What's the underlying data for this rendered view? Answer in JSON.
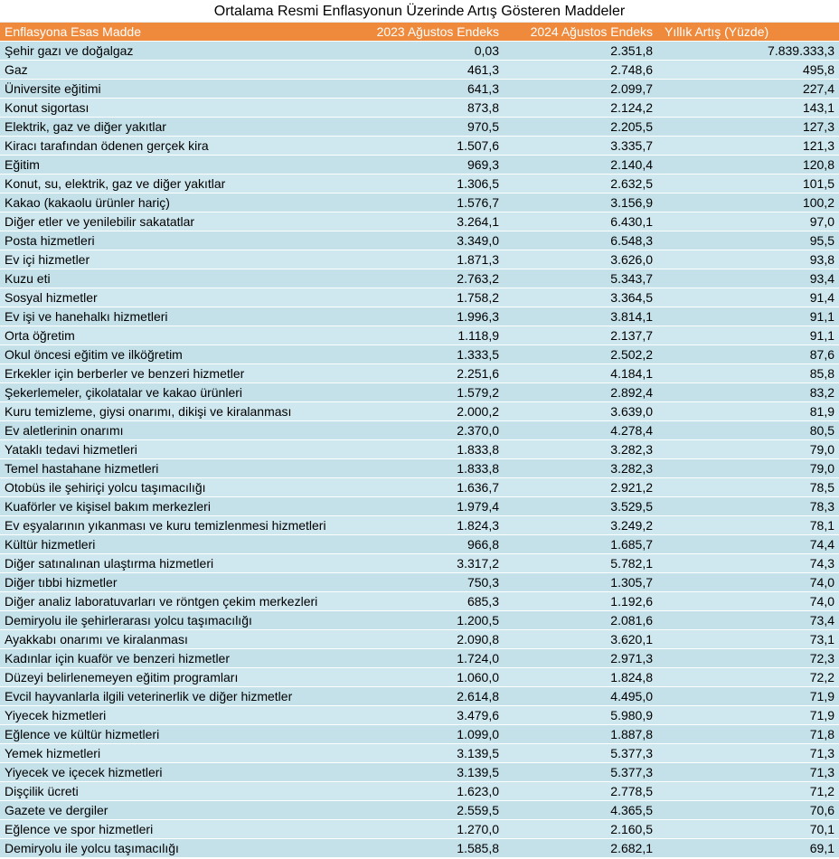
{
  "table": {
    "title": "Ortalama Resmi Enflasyonun Üzerinde Artış Gösteren Maddeler",
    "header": [
      "Enflasyona Esas Madde",
      "2023 Ağustos Endeks",
      "2024 Ağustos Endeks",
      "Yıllık Artış (Yüzde)"
    ],
    "rows": [
      [
        "Şehir gazı ve doğalgaz",
        "0,03",
        "2.351,8",
        "7.839.333,3"
      ],
      [
        "Gaz",
        "461,3",
        "2.748,6",
        "495,8"
      ],
      [
        "Üniversite eğitimi",
        "641,3",
        "2.099,7",
        "227,4"
      ],
      [
        "Konut sigortası",
        "873,8",
        "2.124,2",
        "143,1"
      ],
      [
        "Elektrik, gaz ve diğer yakıtlar",
        "970,5",
        "2.205,5",
        "127,3"
      ],
      [
        "Kiracı tarafından ödenen gerçek kira",
        "1.507,6",
        "3.335,7",
        "121,3"
      ],
      [
        "Eğitim",
        "969,3",
        "2.140,4",
        "120,8"
      ],
      [
        "Konut, su, elektrik, gaz ve diğer yakıtlar",
        "1.306,5",
        "2.632,5",
        "101,5"
      ],
      [
        "Kakao (kakaolu ürünler hariç)",
        "1.576,7",
        "3.156,9",
        "100,2"
      ],
      [
        "Diğer etler ve yenilebilir sakatatlar",
        "3.264,1",
        "6.430,1",
        "97,0"
      ],
      [
        "Posta hizmetleri",
        "3.349,0",
        "6.548,3",
        "95,5"
      ],
      [
        "Ev içi hizmetler",
        "1.871,3",
        "3.626,0",
        "93,8"
      ],
      [
        "Kuzu eti",
        "2.763,2",
        "5.343,7",
        "93,4"
      ],
      [
        "Sosyal hizmetler",
        "1.758,2",
        "3.364,5",
        "91,4"
      ],
      [
        "Ev işi ve hanehalkı hizmetleri",
        "1.996,3",
        "3.814,1",
        "91,1"
      ],
      [
        "Orta öğretim",
        "1.118,9",
        "2.137,7",
        "91,1"
      ],
      [
        "Okul öncesi eğitim ve ilköğretim",
        "1.333,5",
        "2.502,2",
        "87,6"
      ],
      [
        "Erkekler için berberler ve benzeri hizmetler",
        "2.251,6",
        "4.184,1",
        "85,8"
      ],
      [
        "Şekerlemeler, çikolatalar ve kakao ürünleri",
        "1.579,2",
        "2.892,4",
        "83,2"
      ],
      [
        "Kuru temizleme, giysi onarımı, dikişi ve kiralanması",
        "2.000,2",
        "3.639,0",
        "81,9"
      ],
      [
        "Ev aletlerinin onarımı",
        "2.370,0",
        "4.278,4",
        "80,5"
      ],
      [
        "Yataklı tedavi hizmetleri",
        "1.833,8",
        "3.282,3",
        "79,0"
      ],
      [
        "Temel hastahane hizmetleri",
        "1.833,8",
        "3.282,3",
        "79,0"
      ],
      [
        "Otobüs ile şehiriçi yolcu taşımacılığı",
        "1.636,7",
        "2.921,2",
        "78,5"
      ],
      [
        "Kuaförler ve kişisel bakım merkezleri",
        "1.979,4",
        "3.529,5",
        "78,3"
      ],
      [
        "Ev eşyalarının yıkanması ve kuru temizlenmesi hizmetleri",
        "1.824,3",
        "3.249,2",
        "78,1"
      ],
      [
        "Kültür hizmetleri",
        "966,8",
        "1.685,7",
        "74,4"
      ],
      [
        "Diğer satınalınan ulaştırma hizmetleri",
        "3.317,2",
        "5.782,1",
        "74,3"
      ],
      [
        "Diğer tıbbi hizmetler",
        "750,3",
        "1.305,7",
        "74,0"
      ],
      [
        "Diğer analiz laboratuvarları ve röntgen çekim merkezleri",
        "685,3",
        "1.192,6",
        "74,0"
      ],
      [
        "Demiryolu ile şehirlerarası yolcu taşımacılığı",
        "1.200,5",
        "2.081,6",
        "73,4"
      ],
      [
        "Ayakkabı onarımı ve kiralanması",
        "2.090,8",
        "3.620,1",
        "73,1"
      ],
      [
        "Kadınlar için kuaför ve benzeri hizmetler",
        "1.724,0",
        "2.971,3",
        "72,3"
      ],
      [
        "Düzeyi belirlenemeyen eğitim programları",
        "1.060,0",
        "1.824,8",
        "72,2"
      ],
      [
        "Evcil hayvanlarla ilgili veterinerlik ve diğer hizmetler",
        "2.614,8",
        "4.495,0",
        "71,9"
      ],
      [
        "Yiyecek hizmetleri",
        "3.479,6",
        "5.980,9",
        "71,9"
      ],
      [
        "Eğlence ve kültür hizmetleri",
        "1.099,0",
        "1.887,8",
        "71,8"
      ],
      [
        "Yemek hizmetleri",
        "3.139,5",
        "5.377,3",
        "71,3"
      ],
      [
        "Yiyecek ve içecek hizmetleri",
        "3.139,5",
        "5.377,3",
        "71,3"
      ],
      [
        "Dişçilik ücreti",
        "1.623,0",
        "2.778,5",
        "71,2"
      ],
      [
        "Gazete ve dergiler",
        "2.559,5",
        "4.365,5",
        "70,6"
      ],
      [
        "Eğlence ve spor hizmetleri",
        "1.270,0",
        "2.160,5",
        "70,1"
      ],
      [
        "Demiryolu ile yolcu taşımacılığı",
        "1.585,8",
        "2.682,1",
        "69,1"
      ]
    ]
  }
}
